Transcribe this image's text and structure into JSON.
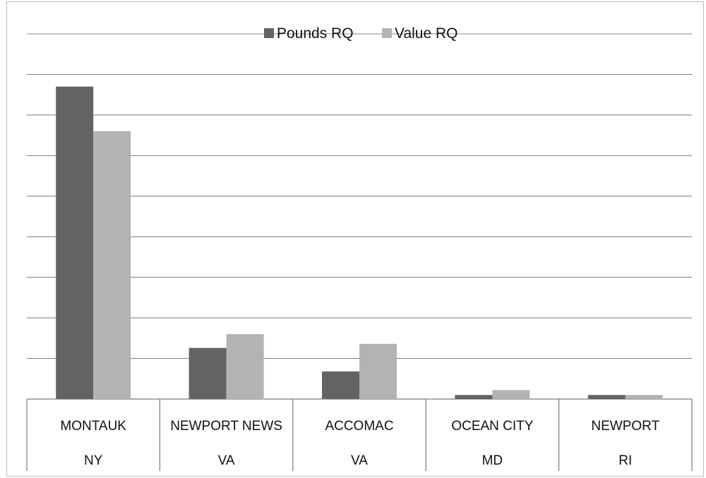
{
  "chart_data": {
    "type": "bar",
    "categories": [
      [
        "MONTAUK",
        "NY"
      ],
      [
        "NEWPORT NEWS",
        "VA"
      ],
      [
        "ACCOMAC",
        "VA"
      ],
      [
        "OCEAN CITY",
        "MD"
      ],
      [
        "NEWPORT",
        "RI"
      ]
    ],
    "series": [
      {
        "name": "Pounds RQ",
        "color": "#636363",
        "values": [
          0.385,
          0.063,
          0.034,
          0.005,
          0.005
        ]
      },
      {
        "name": "Value RQ",
        "color": "#b3b3b3",
        "values": [
          0.33,
          0.08,
          0.068,
          0.011,
          0.005
        ]
      }
    ],
    "ylim": [
      0,
      0.45
    ],
    "y_gridline_count": 10,
    "y_tick_labels_shown": false,
    "grid": true,
    "legend": "top-center",
    "title": "",
    "xlabel": "",
    "ylabel": ""
  }
}
